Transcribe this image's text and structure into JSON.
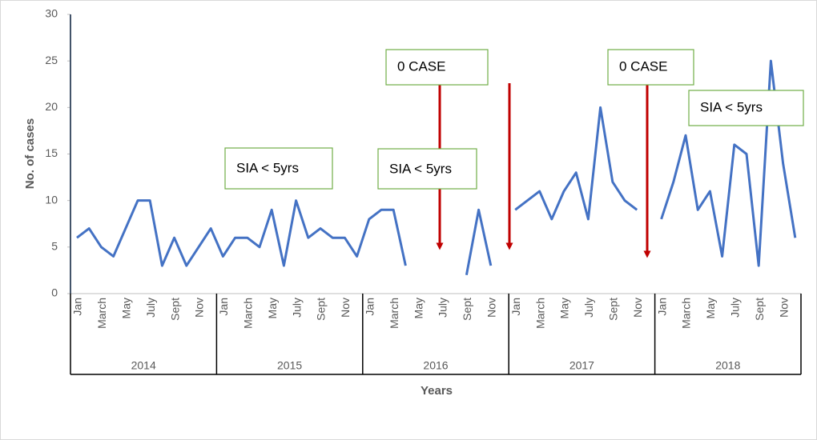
{
  "chart_data": {
    "type": "line",
    "y_label": "No. of cases",
    "x_label": "Years",
    "categories": [
      "Jan",
      null,
      "March",
      null,
      "May",
      null,
      "July",
      null,
      "Sept",
      null,
      "Nov",
      null,
      "Jan",
      null,
      "March",
      null,
      "May",
      null,
      "July",
      null,
      "Sept",
      null,
      "Nov",
      null,
      "Jan",
      null,
      "March",
      null,
      "May",
      null,
      "July",
      null,
      "Sept",
      null,
      "Nov",
      null,
      "Jan",
      null,
      "March",
      null,
      "May",
      null,
      "July",
      null,
      "Sept",
      null,
      "Nov",
      null,
      "Jan",
      null,
      "March",
      null,
      "May",
      null,
      "July",
      null,
      "Sept",
      null,
      "Nov",
      null
    ],
    "groups": [
      "2014",
      "2015",
      "2016",
      "2017",
      "2018"
    ],
    "series": [
      {
        "name": "Cases",
        "color": "#4472c4",
        "values": [
          6,
          7,
          5,
          4,
          7,
          10,
          10,
          3,
          6,
          3,
          5,
          7,
          4,
          6,
          6,
          5,
          9,
          3,
          10,
          6,
          7,
          6,
          6,
          4,
          8,
          9,
          9,
          3,
          null,
          null,
          null,
          null,
          2,
          9,
          3,
          null,
          9,
          10,
          11,
          8,
          11,
          13,
          8,
          20,
          12,
          10,
          9,
          null,
          8,
          12,
          17,
          9,
          11,
          4,
          16,
          15,
          3,
          25,
          14,
          6
        ]
      }
    ],
    "ylim": [
      0,
      30
    ],
    "yticks": [
      0,
      5,
      10,
      15,
      20,
      25,
      30
    ],
    "annotations": [
      "SIA < 5yrs",
      "0 CASE",
      "SIA < 5yrs",
      "0 CASE",
      "SIA < 5yrs"
    ]
  }
}
